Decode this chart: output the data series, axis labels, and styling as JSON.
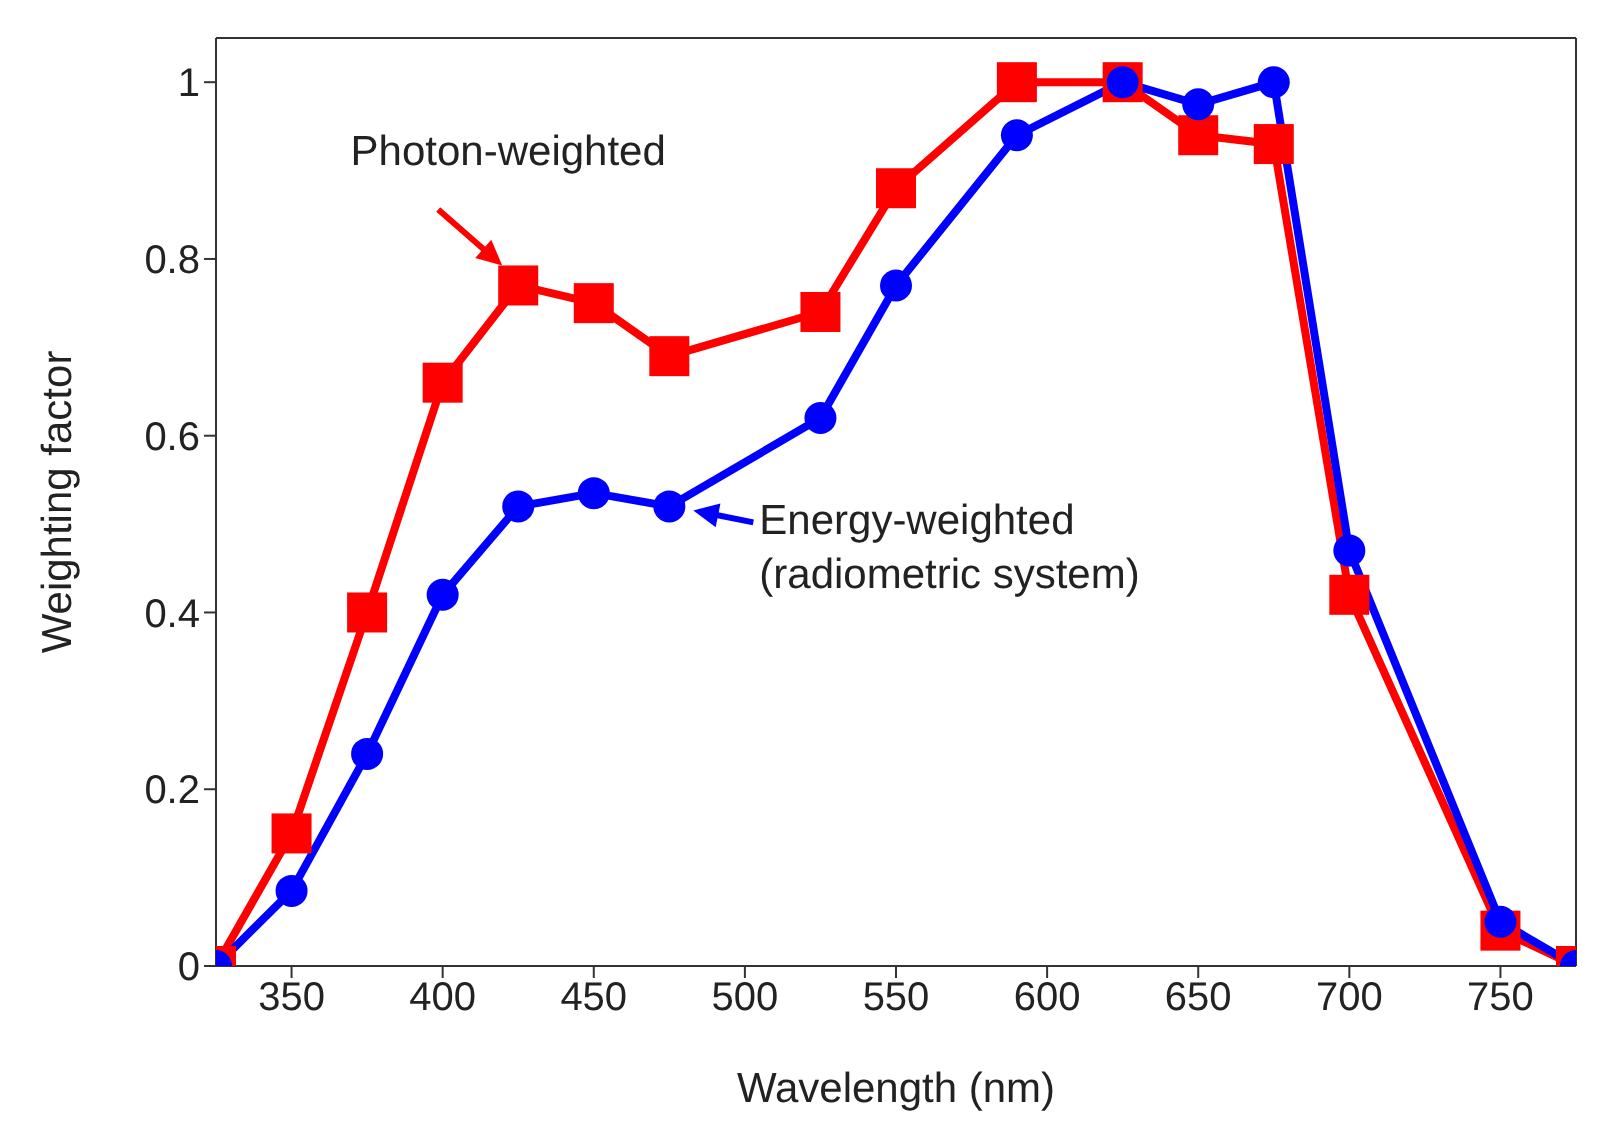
{
  "chart_data": {
    "type": "line",
    "xlabel": "Wavelength (nm)",
    "ylabel": "Weighting factor",
    "x": [
      325,
      350,
      375,
      400,
      425,
      450,
      475,
      525,
      550,
      590,
      625,
      650,
      675,
      700,
      750,
      775
    ],
    "series": [
      {
        "color": "#ff0000",
        "marker": "square",
        "values": [
          0,
          0.15,
          0.4,
          0.66,
          0.77,
          0.75,
          0.69,
          0.74,
          0.88,
          1.0,
          1.0,
          0.94,
          0.93,
          0.42,
          0.04,
          0
        ]
      },
      {
        "color": "#0000ff",
        "marker": "circle",
        "values": [
          0,
          0.085,
          0.24,
          0.42,
          0.52,
          0.535,
          0.52,
          0.62,
          0.77,
          0.94,
          1.0,
          0.975,
          1.0,
          0.47,
          0.05,
          0
        ]
      }
    ],
    "xlim": [
      325,
      775
    ],
    "xticks": [
      350,
      400,
      450,
      500,
      550,
      600,
      650,
      700,
      750
    ],
    "ylim": [
      0,
      1.05
    ],
    "yticks": [
      0,
      0.2,
      0.4,
      0.6,
      0.8,
      1
    ],
    "annotations": [
      {
        "text": "Photon-weighted",
        "x": 425,
        "y": 0.77
      },
      {
        "text": "Energy-weighted\n(radiometric system)",
        "x": 475,
        "y": 0.52
      }
    ],
    "grid": false
  }
}
